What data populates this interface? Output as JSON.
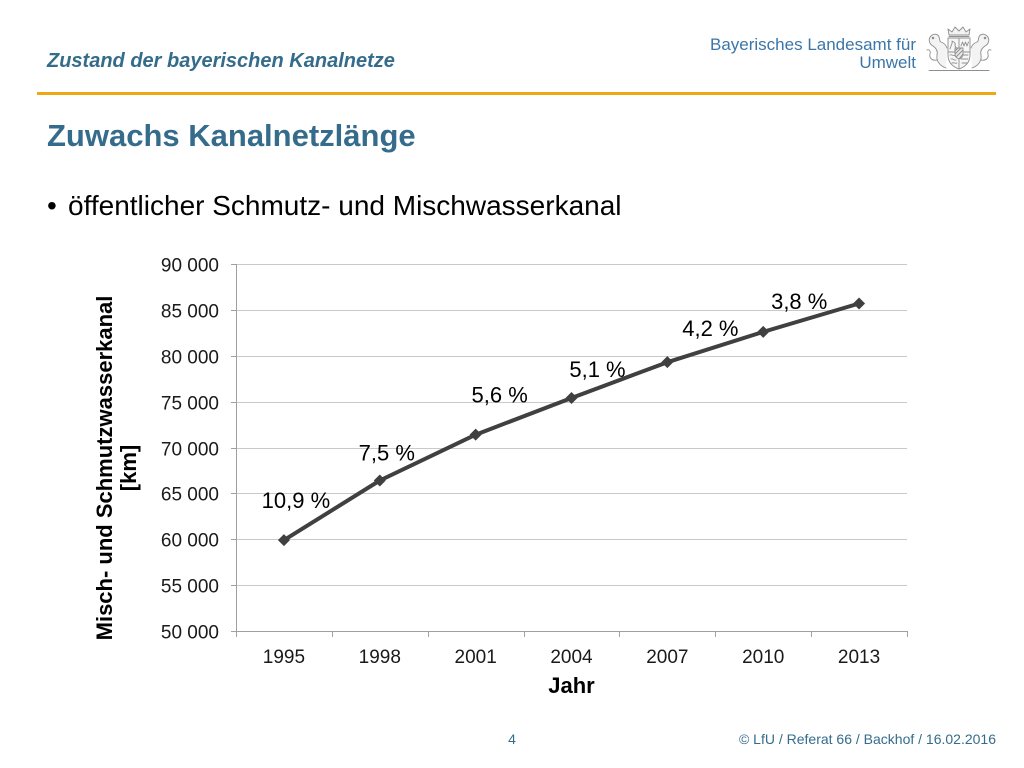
{
  "header": {
    "section_title": "Zustand der bayerischen Kanalnetze",
    "org_name_line1": "Bayerisches Landesamt für",
    "org_name_line2": "Umwelt",
    "logo_icon": "bavarian-coat-of-arms-icon"
  },
  "slide": {
    "title": "Zuwachs Kanalnetzlänge",
    "bullets": [
      {
        "marker": "•",
        "text": "öffentlicher Schmutz- und Mischwasserkanal"
      }
    ]
  },
  "chart_data": {
    "type": "line",
    "categories": [
      "1995",
      "1998",
      "2001",
      "2004",
      "2007",
      "2010",
      "2013"
    ],
    "series": [
      {
        "values": [
          59900,
          66400,
          71400,
          75400,
          79300,
          82600,
          85700
        ],
        "marker": "diamond",
        "color": "#404040"
      }
    ],
    "data_labels": [
      "10,9 %",
      "7,5 %",
      "5,6 %",
      "5,1 %",
      "4,2 %",
      "3,8 %"
    ],
    "xlabel": "Jahr",
    "ylabel": [
      "Misch- und Schmutzwasserkanal",
      "[km]"
    ],
    "ylim": [
      50000,
      90000
    ],
    "ytick_labels": [
      "50 000",
      "55 000",
      "60 000",
      "65 000",
      "70 000",
      "75 000",
      "80 000",
      "85 000",
      "90 000"
    ],
    "grid": "horizontal",
    "legend": "none"
  },
  "footer": {
    "page_number": "4",
    "copyright": "© LfU / Referat 66 / Backhof / 16.02.2016"
  },
  "colors": {
    "accent": "#356c8c",
    "org_text": "#3b76a9",
    "rule": "#f0a715",
    "series_line": "#404040",
    "gridline": "#c9c9c9",
    "axis": "#a0a0a0"
  }
}
